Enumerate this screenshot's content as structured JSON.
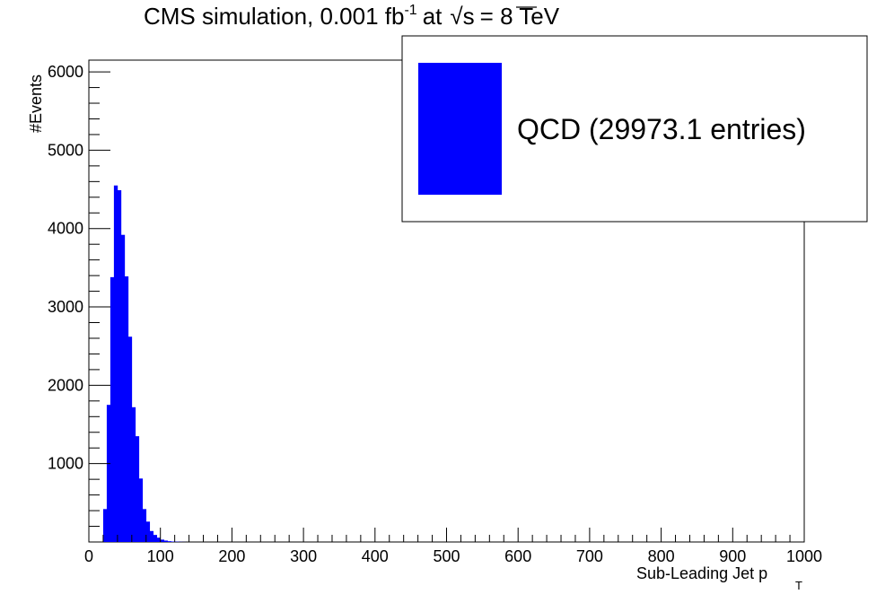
{
  "chart_data": {
    "type": "bar",
    "title_main": "CMS simulation, 0.001 fb",
    "title_exp": "-1",
    "title_at": "at",
    "title_sqrt": "√s",
    "title_energy": "= 8 TeV",
    "xlabel": "Sub-Leading Jet p",
    "xlabel_sub": "T",
    "ylabel": "#Events",
    "xlim": [
      0,
      1000
    ],
    "ylim": [
      0,
      6150
    ],
    "x_ticks": [
      "0",
      "100",
      "200",
      "300",
      "400",
      "500",
      "600",
      "700",
      "800",
      "900",
      "1000"
    ],
    "y_ticks": [
      "1000",
      "2000",
      "3000",
      "4000",
      "5000",
      "6000"
    ],
    "x_tick_values": [
      0,
      100,
      200,
      300,
      400,
      500,
      600,
      700,
      800,
      900,
      1000
    ],
    "y_tick_values": [
      1000,
      2000,
      3000,
      4000,
      5000,
      6000
    ],
    "bin_width": 5,
    "bin_start": 10,
    "series": [
      {
        "name": "QCD (29973.1 entries)",
        "color": "#0000ff",
        "values": [
          0,
          0,
          420,
          1750,
          3380,
          4550,
          4490,
          3920,
          3390,
          2620,
          1720,
          1350,
          810,
          420,
          260,
          140,
          90,
          55,
          30,
          18,
          10,
          6,
          4,
          2,
          1
        ]
      }
    ],
    "legend": {
      "label": "QCD (29973.1 entries)",
      "placement": "top-right"
    }
  }
}
